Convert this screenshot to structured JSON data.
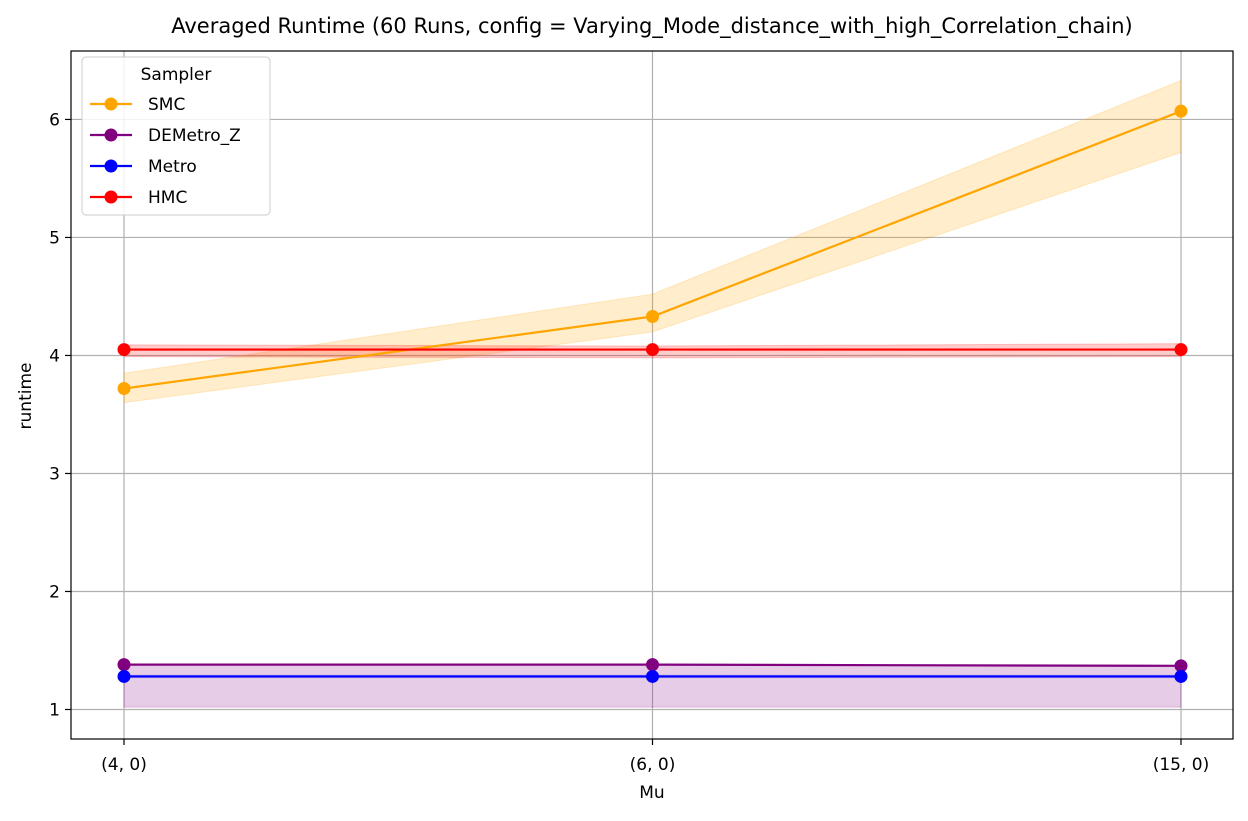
{
  "chart_data": {
    "type": "line",
    "title": "Averaged Runtime (60 Runs, config = Varying_Mode_distance_with_high_Correlation_chain)",
    "xlabel": "Mu",
    "ylabel": "runtime",
    "categories": [
      "(4, 0)",
      "(6, 0)",
      "(15, 0)"
    ],
    "ylim": [
      0.75,
      6.58
    ],
    "yticks": [
      1,
      2,
      3,
      4,
      5,
      6
    ],
    "grid": true,
    "legend": {
      "title": "Sampler",
      "position": "top-left"
    },
    "series": [
      {
        "name": "SMC",
        "color": "#ffa500",
        "values": [
          3.72,
          4.33,
          6.07
        ],
        "band_low": [
          3.6,
          4.2,
          5.72
        ],
        "band_high": [
          3.85,
          4.52,
          6.33
        ]
      },
      {
        "name": "DEMetro_Z",
        "color": "#800080",
        "values": [
          1.38,
          1.38,
          1.37
        ],
        "band_low": [
          1.02,
          1.02,
          1.02
        ],
        "band_high": [
          1.38,
          1.38,
          1.37
        ]
      },
      {
        "name": "Metro",
        "color": "#0000ff",
        "values": [
          1.28,
          1.28,
          1.28
        ],
        "band_low": [
          1.27,
          1.27,
          1.27
        ],
        "band_high": [
          1.29,
          1.29,
          1.29
        ]
      },
      {
        "name": "HMC",
        "color": "#ff0000",
        "values": [
          4.05,
          4.05,
          4.05
        ],
        "band_low": [
          3.99,
          3.98,
          3.99
        ],
        "band_high": [
          4.09,
          4.08,
          4.1
        ]
      }
    ]
  }
}
